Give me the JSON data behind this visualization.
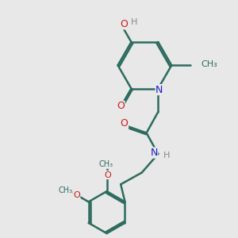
{
  "bg_color": "#e8e8e8",
  "bond_color": "#2d6b5e",
  "N_color": "#1a1acc",
  "O_color": "#cc1a1a",
  "H_color": "#888888",
  "bond_width": 1.8,
  "fig_size": [
    3.0,
    3.0
  ],
  "dpi": 100,
  "xlim": [
    0,
    10
  ],
  "ylim": [
    0,
    10
  ]
}
